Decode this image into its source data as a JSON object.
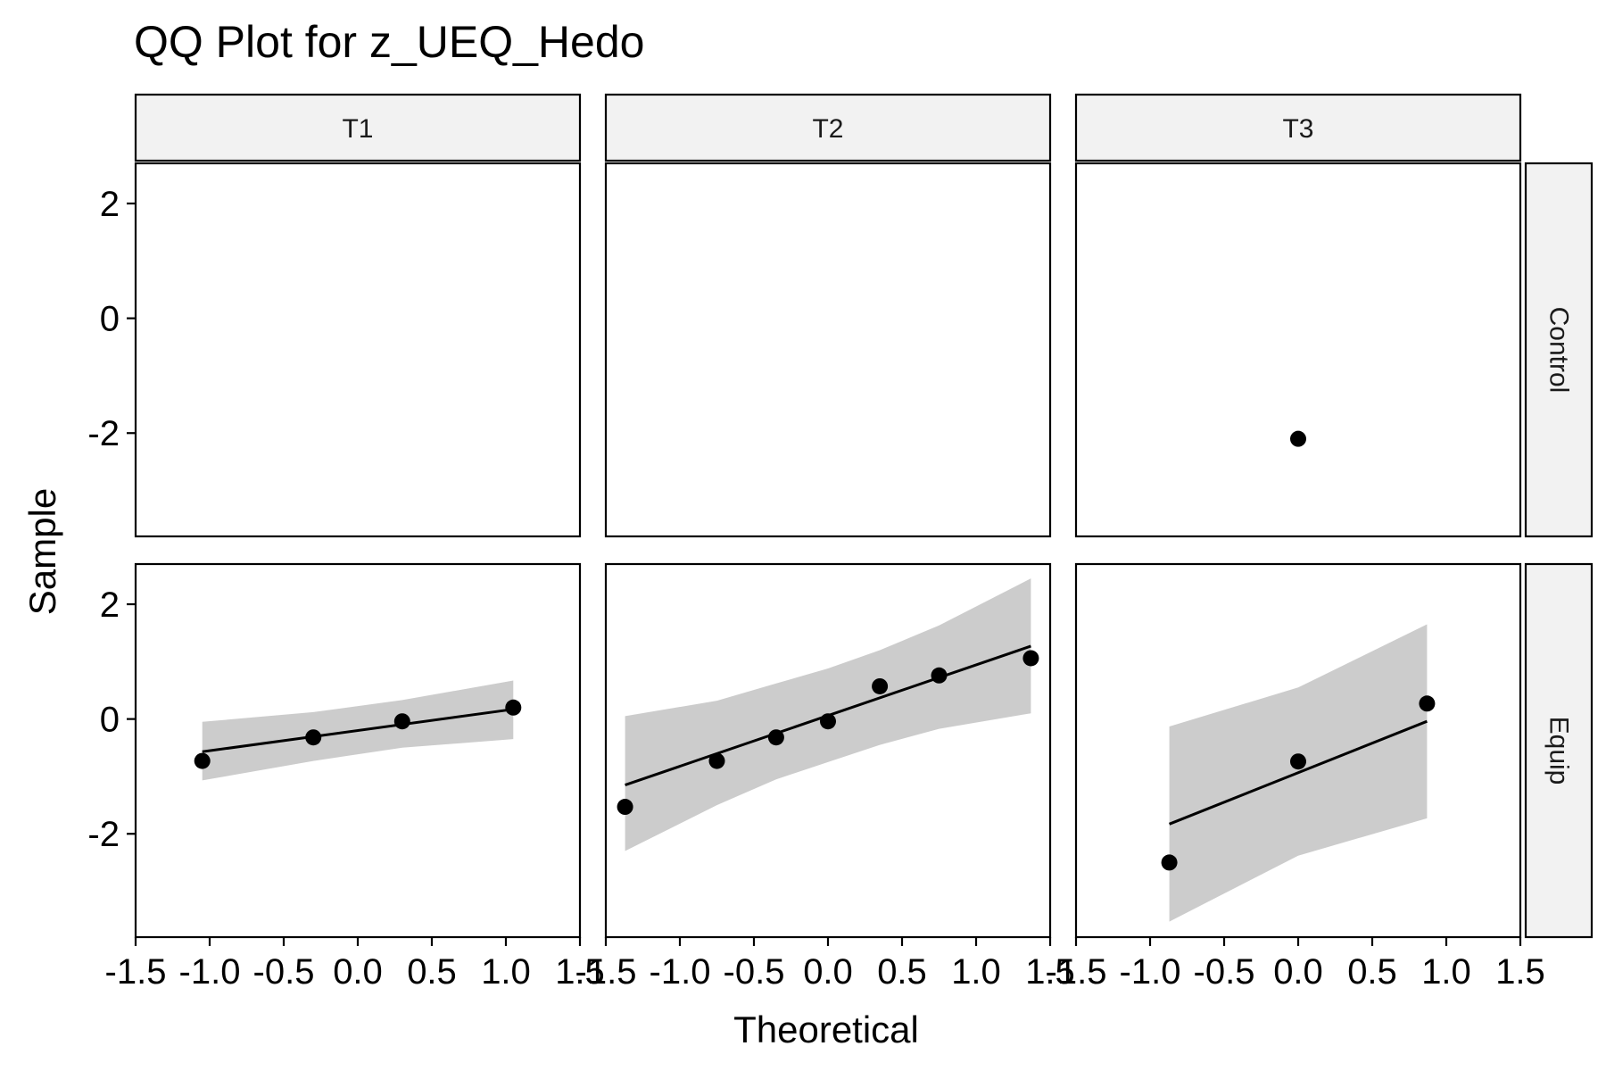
{
  "chart_data": {
    "type": "scatter",
    "title": "QQ Plot for z_UEQ_Hedo",
    "xlabel": "Theoretical",
    "ylabel": "Sample",
    "column_facets": [
      "T1",
      "T2",
      "T3"
    ],
    "row_facets": [
      "Control",
      "Equip"
    ],
    "xlim": [
      -1.5,
      1.5
    ],
    "ylim": [
      -3.8,
      2.7
    ],
    "x_ticks": [
      -1.5,
      -1.0,
      -0.5,
      0.0,
      0.5,
      1.0,
      1.5
    ],
    "x_tick_labels": [
      "-1.5",
      "-1.0",
      "-0.5",
      "0.0",
      "0.5",
      "1.0",
      "1.5"
    ],
    "y_ticks": [
      2,
      0,
      -2
    ],
    "y_tick_labels": [
      "2",
      "0",
      "-2"
    ],
    "grid": false,
    "panels": [
      {
        "col": "T1",
        "row": "Control",
        "points": [],
        "line": null,
        "band": null
      },
      {
        "col": "T2",
        "row": "Control",
        "points": [],
        "line": null,
        "band": null
      },
      {
        "col": "T3",
        "row": "Control",
        "points": [
          [
            0.0,
            -2.1
          ]
        ],
        "line": null,
        "band": null
      },
      {
        "col": "T1",
        "row": "Equip",
        "points": [
          [
            -1.05,
            -0.73
          ],
          [
            -0.3,
            -0.32
          ],
          [
            0.3,
            -0.04
          ],
          [
            1.05,
            0.2
          ]
        ],
        "line": [
          [
            -1.05,
            -0.57
          ],
          [
            1.05,
            0.17
          ]
        ],
        "band": {
          "x": [
            -1.05,
            -0.3,
            0.3,
            1.05
          ],
          "upper": [
            -0.05,
            0.12,
            0.33,
            0.67
          ],
          "lower": [
            -1.07,
            -0.73,
            -0.5,
            -0.35
          ]
        }
      },
      {
        "col": "T2",
        "row": "Equip",
        "points": [
          [
            -1.37,
            -1.53
          ],
          [
            -0.75,
            -0.73
          ],
          [
            -0.35,
            -0.32
          ],
          [
            0.0,
            -0.04
          ],
          [
            0.35,
            0.57
          ],
          [
            0.75,
            0.76
          ],
          [
            1.37,
            1.06
          ]
        ],
        "line": [
          [
            -1.37,
            -1.15
          ],
          [
            1.37,
            1.27
          ]
        ],
        "band": {
          "x": [
            -1.37,
            -0.75,
            -0.35,
            0.0,
            0.35,
            0.75,
            1.37
          ],
          "upper": [
            0.05,
            0.32,
            0.62,
            0.88,
            1.2,
            1.63,
            2.45
          ],
          "lower": [
            -2.3,
            -1.5,
            -1.05,
            -0.75,
            -0.45,
            -0.17,
            0.1
          ]
        }
      },
      {
        "col": "T3",
        "row": "Equip",
        "points": [
          [
            -0.87,
            -2.5
          ],
          [
            0.0,
            -0.74
          ],
          [
            0.87,
            0.27
          ]
        ],
        "line": [
          [
            -0.87,
            -1.83
          ],
          [
            0.87,
            -0.04
          ]
        ],
        "band": {
          "x": [
            -0.87,
            0.0,
            0.87
          ],
          "upper": [
            -0.13,
            0.55,
            1.65
          ],
          "lower": [
            -3.53,
            -2.38,
            -1.73
          ]
        }
      }
    ]
  }
}
